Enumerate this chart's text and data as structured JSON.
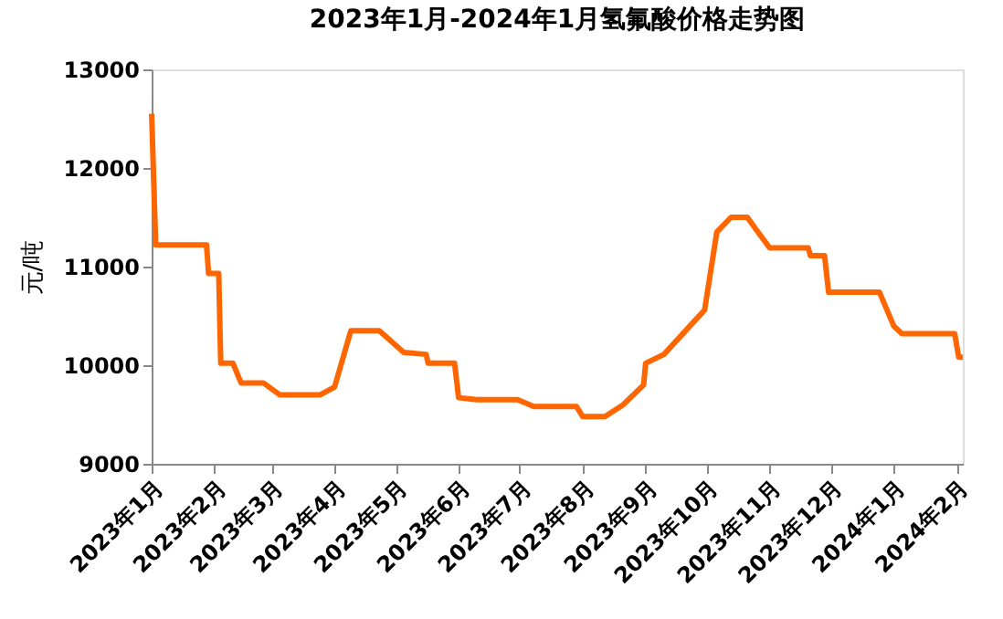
{
  "chart_data": {
    "type": "line",
    "title": "2023年1月-2024年1月氢氟酸价格走势图",
    "ylabel": "元/吨",
    "x": [
      "2023-01-01",
      "2023-01-03",
      "2023-01-28",
      "2023-01-29",
      "2023-02-03",
      "2023-02-04",
      "2023-02-10",
      "2023-02-14",
      "2023-02-25",
      "2023-03-05",
      "2023-03-25",
      "2023-04-01",
      "2023-04-09",
      "2023-04-23",
      "2023-05-05",
      "2023-05-16",
      "2023-05-17",
      "2023-05-30",
      "2023-06-01",
      "2023-06-10",
      "2023-06-30",
      "2023-07-08",
      "2023-07-29",
      "2023-08-01",
      "2023-08-12",
      "2023-08-21",
      "2023-08-31",
      "2023-09-01",
      "2023-09-10",
      "2023-09-30",
      "2023-10-06",
      "2023-10-13",
      "2023-10-21",
      "2023-10-28",
      "2023-11-01",
      "2023-11-20",
      "2023-11-21",
      "2023-11-28",
      "2023-11-30",
      "2023-12-25",
      "2024-01-01",
      "2024-01-05",
      "2024-01-31",
      "2024-02-02",
      "2024-02-04"
    ],
    "series": [
      {
        "color": "#ff6600",
        "values": [
          12550,
          11220,
          11220,
          10930,
          10930,
          10020,
          10020,
          9820,
          9820,
          9700,
          9700,
          9780,
          10350,
          10350,
          10130,
          10110,
          10020,
          10020,
          9670,
          9650,
          9650,
          9580,
          9580,
          9480,
          9480,
          9600,
          9800,
          10020,
          10110,
          10560,
          11350,
          11500,
          11500,
          11300,
          11190,
          11190,
          11110,
          11110,
          10740,
          10740,
          10400,
          10320,
          10320,
          10080,
          10080
        ]
      }
    ],
    "xlim": [
      "2023-01-01",
      "2024-02-04"
    ],
    "xticks": [
      {
        "value": "2023-01-01",
        "label": "2023年1月"
      },
      {
        "value": "2023-02-01",
        "label": "2023年2月"
      },
      {
        "value": "2023-03-01",
        "label": "2023年3月"
      },
      {
        "value": "2023-04-01",
        "label": "2023年4月"
      },
      {
        "value": "2023-05-01",
        "label": "2023年5月"
      },
      {
        "value": "2023-06-01",
        "label": "2023年6月"
      },
      {
        "value": "2023-07-01",
        "label": "2023年7月"
      },
      {
        "value": "2023-08-01",
        "label": "2023年8月"
      },
      {
        "value": "2023-09-01",
        "label": "2023年9月"
      },
      {
        "value": "2023-10-01",
        "label": "2023年10月"
      },
      {
        "value": "2023-11-01",
        "label": "2023年11月"
      },
      {
        "value": "2023-12-01",
        "label": "2023年12月"
      },
      {
        "value": "2024-01-01",
        "label": "2024年1月"
      },
      {
        "value": "2024-02-01",
        "label": "2024年2月"
      }
    ],
    "ylim": [
      9000,
      13000
    ],
    "yticks": [
      9000,
      10000,
      11000,
      12000,
      13000
    ],
    "grid": false,
    "marker": "none",
    "line_style": "solid"
  }
}
